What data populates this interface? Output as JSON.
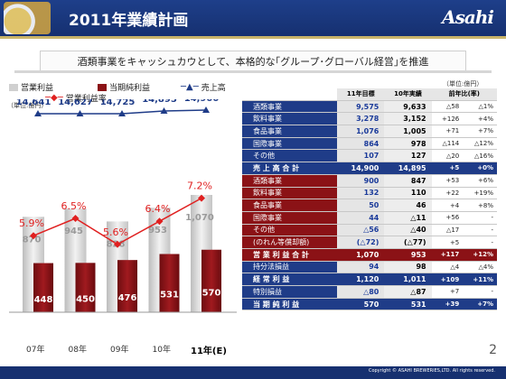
{
  "header": {
    "title": "2011年業績計画",
    "logo": "Asahi"
  },
  "banner": {
    "text": "酒類事業をキャッシュカウとして、本格的な｢グループ･グローバル経営｣を推進"
  },
  "legend": {
    "op_profit": "営業利益",
    "net_income": "当期純利益",
    "sales": "売上高",
    "op_margin": "営業利益率"
  },
  "unit_left": "（単位:億円）",
  "unit_right": "（単位:億円）",
  "colors": {
    "navy": "#1f3c88",
    "maroon": "#8b1216",
    "grey_bar": "#cfcfcf",
    "margin_line": "#e02020"
  },
  "chart_data": {
    "type": "bar",
    "categories": [
      "07年",
      "08年",
      "09年",
      "10年",
      "11年(E)"
    ],
    "series": [
      {
        "name": "営業利益",
        "values": [
          870,
          945,
          828,
          953,
          1070
        ]
      },
      {
        "name": "当期純利益",
        "values": [
          448,
          450,
          476,
          531,
          570
        ]
      },
      {
        "name": "売上高",
        "values": [
          14641,
          14627,
          14725,
          14895,
          14900
        ]
      },
      {
        "name": "営業利益率",
        "values": [
          5.9,
          6.5,
          5.6,
          6.4,
          7.2
        ]
      }
    ],
    "labels": {
      "sales": [
        "14,641",
        "14,627",
        "14,725",
        "14,895",
        "14,900"
      ],
      "op_margin": [
        "5.9%",
        "6.5%",
        "5.6%",
        "6.4%",
        "7.2%"
      ],
      "op_profit": [
        "870",
        "945",
        "828",
        "953",
        "1,070"
      ],
      "net_income": [
        "448",
        "450",
        "476",
        "531",
        "570"
      ]
    }
  },
  "table": {
    "headers": [
      "11年目標",
      "10年実績",
      "前年比(率)"
    ],
    "rows": [
      {
        "label": "酒類事業",
        "plan": "9,575",
        "actual": "9,633",
        "diff": "△58",
        "pct": "△1%",
        "kind": "blue"
      },
      {
        "label": "飲料事業",
        "plan": "3,278",
        "actual": "3,152",
        "diff": "+126",
        "pct": "+4%",
        "kind": "blue"
      },
      {
        "label": "食品事業",
        "plan": "1,076",
        "actual": "1,005",
        "diff": "+71",
        "pct": "+7%",
        "kind": "blue"
      },
      {
        "label": "国際事業",
        "plan": "864",
        "actual": "978",
        "diff": "△114",
        "pct": "△12%",
        "kind": "blue"
      },
      {
        "label": "その他",
        "plan": "107",
        "actual": "127",
        "diff": "△20",
        "pct": "△16%",
        "kind": "blue"
      },
      {
        "label": "売 上 高 合 計",
        "plan": "14,900",
        "actual": "14,895",
        "diff": "+5",
        "pct": "+0%",
        "kind": "blue tot"
      },
      {
        "label": "酒類事業",
        "plan": "900",
        "actual": "847",
        "diff": "+53",
        "pct": "+6%",
        "kind": "red"
      },
      {
        "label": "飲料事業",
        "plan": "132",
        "actual": "110",
        "diff": "+22",
        "pct": "+19%",
        "kind": "red"
      },
      {
        "label": "食品事業",
        "plan": "50",
        "actual": "46",
        "diff": "+4",
        "pct": "+8%",
        "kind": "red"
      },
      {
        "label": "国際事業",
        "plan": "44",
        "actual": "△11",
        "diff": "+56",
        "pct": "-",
        "kind": "red"
      },
      {
        "label": "その他",
        "plan": "△56",
        "actual": "△40",
        "diff": "△17",
        "pct": "-",
        "kind": "red"
      },
      {
        "label": "(のれん等償却額)",
        "plan": "(△72)",
        "actual": "(△77)",
        "diff": "+5",
        "pct": "-",
        "kind": "red"
      },
      {
        "label": "営 業 利 益 合 計",
        "plan": "1,070",
        "actual": "953",
        "diff": "+117",
        "pct": "+12%",
        "kind": "red tot"
      },
      {
        "label": "持分法損益",
        "plan": "94",
        "actual": "98",
        "diff": "△4",
        "pct": "△4%",
        "kind": "blue"
      },
      {
        "label": "経 常 利 益",
        "plan": "1,120",
        "actual": "1,011",
        "diff": "+109",
        "pct": "+11%",
        "kind": "blue tot"
      },
      {
        "label": "特別損益",
        "plan": "△80",
        "actual": "△87",
        "diff": "+7",
        "pct": "-",
        "kind": "blue"
      },
      {
        "label": "当 期 純 利 益",
        "plan": "570",
        "actual": "531",
        "diff": "+39",
        "pct": "+7%",
        "kind": "blue tot"
      }
    ]
  },
  "page_number": "2",
  "copyright": "Copyright © ASAHI BREWERIES,LTD. All rights reserved."
}
